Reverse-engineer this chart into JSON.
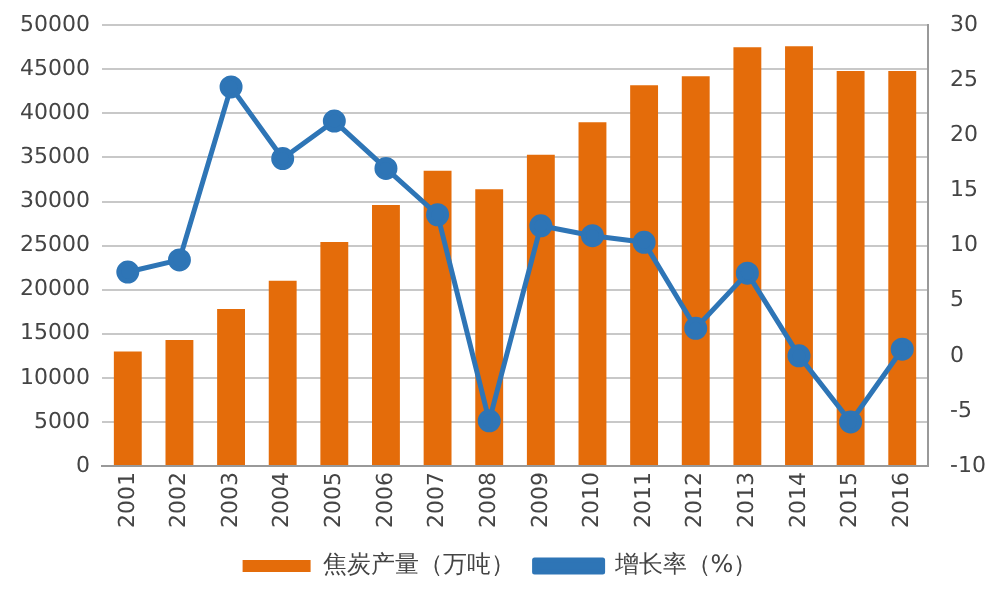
{
  "chart_data": {
    "type": "bar",
    "categories": [
      "2001",
      "2002",
      "2003",
      "2004",
      "2005",
      "2006",
      "2007",
      "2008",
      "2009",
      "2010",
      "2011",
      "2012",
      "2013",
      "2014",
      "2015",
      "2016"
    ],
    "series": [
      {
        "name": "焦炭产量（万吨）",
        "color": "#e46c0a",
        "values": [
          13000,
          14300,
          17800,
          21000,
          25400,
          29600,
          33500,
          31400,
          35300,
          39000,
          43200,
          44200,
          47500,
          47600,
          44800,
          44800
        ]
      },
      {
        "name": "增长率（%）",
        "type": "line",
        "axis": "y2",
        "color": "#2e75b6",
        "values": [
          7.6,
          8.7,
          24.4,
          17.9,
          21.3,
          17.0,
          12.8,
          -5.9,
          11.8,
          10.9,
          10.3,
          2.5,
          7.5,
          0,
          -6,
          0.6
        ]
      }
    ],
    "ylim": [
      0,
      50000
    ],
    "yticks": [
      0,
      5000,
      10000,
      15000,
      20000,
      25000,
      30000,
      35000,
      40000,
      45000,
      50000
    ],
    "y2lim": [
      -10,
      30
    ],
    "y2ticks": [
      -10,
      -5,
      0,
      5,
      10,
      15,
      20,
      25,
      30
    ],
    "grid": "y",
    "legend": "bottom",
    "marker": "circle",
    "line_style": "solid"
  }
}
